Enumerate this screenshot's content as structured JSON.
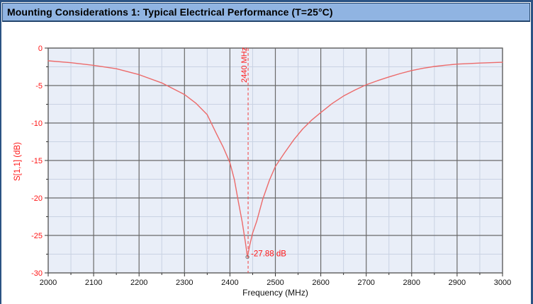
{
  "header": {
    "title": "Mounting Considerations 1: Typical Electrical Performance (T=25°C)"
  },
  "colors": {
    "frame_border": "#2b5384",
    "header_bg": "#90b4e2",
    "header_border": "#24466e",
    "plot_bg": "#e9eef8",
    "major_grid": "#6a6a6a",
    "minor_grid": "#c9d2e3",
    "curve": "#ec6a6a",
    "marker_dashed": "#f25050",
    "red_text": "#ff1616",
    "black_text": "#111111"
  },
  "chart_data": {
    "type": "line",
    "title": "",
    "xlabel": "Frequency (MHz)",
    "ylabel": "S[1,1] (dB)",
    "xlim": [
      2000,
      3000
    ],
    "ylim": [
      -30,
      0
    ],
    "x_ticks": [
      2000,
      2100,
      2200,
      2300,
      2400,
      2500,
      2600,
      2700,
      2800,
      2900,
      3000
    ],
    "y_ticks": [
      0,
      -5,
      -10,
      -15,
      -20,
      -25,
      -30
    ],
    "x_minor_step": 50,
    "y_minor_step": 2.5,
    "grid": true,
    "legend_position": "none",
    "series": [
      {
        "name": "S[1,1]",
        "points": [
          [
            2000,
            -1.7
          ],
          [
            2050,
            -1.95
          ],
          [
            2100,
            -2.3
          ],
          [
            2150,
            -2.75
          ],
          [
            2200,
            -3.55
          ],
          [
            2250,
            -4.65
          ],
          [
            2300,
            -6.2
          ],
          [
            2325,
            -7.35
          ],
          [
            2350,
            -8.9
          ],
          [
            2370,
            -11.4
          ],
          [
            2385,
            -13.2
          ],
          [
            2400,
            -15.3
          ],
          [
            2410,
            -17.6
          ],
          [
            2418,
            -20.3
          ],
          [
            2427,
            -23.2
          ],
          [
            2434,
            -25.9
          ],
          [
            2438.5,
            -27.88
          ],
          [
            2444,
            -26.2
          ],
          [
            2450,
            -24.7
          ],
          [
            2459,
            -23.1
          ],
          [
            2472,
            -20.2
          ],
          [
            2487,
            -17.6
          ],
          [
            2500,
            -15.8
          ],
          [
            2520,
            -14.0
          ],
          [
            2541,
            -12.2
          ],
          [
            2560,
            -10.8
          ],
          [
            2580,
            -9.6
          ],
          [
            2600,
            -8.6
          ],
          [
            2625,
            -7.4
          ],
          [
            2650,
            -6.4
          ],
          [
            2675,
            -5.6
          ],
          [
            2700,
            -4.9
          ],
          [
            2725,
            -4.35
          ],
          [
            2750,
            -3.85
          ],
          [
            2775,
            -3.4
          ],
          [
            2800,
            -3.0
          ],
          [
            2825,
            -2.7
          ],
          [
            2850,
            -2.45
          ],
          [
            2875,
            -2.28
          ],
          [
            2900,
            -2.14
          ],
          [
            2950,
            -2.0
          ],
          [
            3000,
            -1.9
          ]
        ]
      }
    ],
    "annotations": {
      "vline": {
        "x": 2440,
        "label": "2440 MHz"
      },
      "minimum": {
        "x": 2438.5,
        "y": -27.88,
        "label": "-27.88 dB"
      }
    }
  }
}
